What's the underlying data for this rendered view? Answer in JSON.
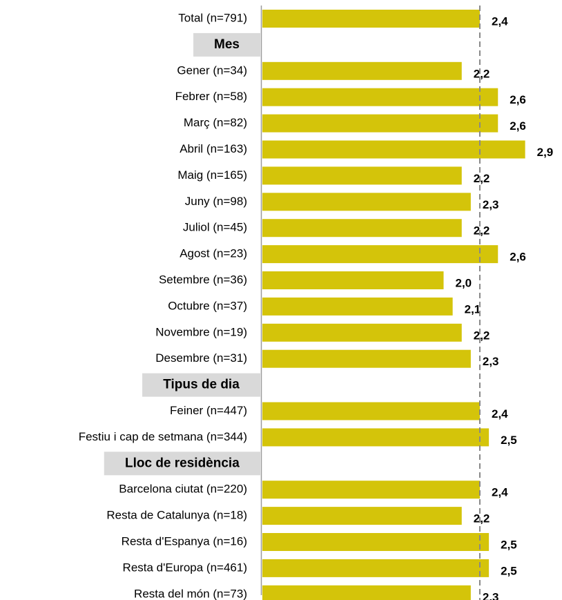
{
  "chart_data": {
    "type": "bar",
    "orientation": "horizontal",
    "categories": [
      "Total (n=791)",
      "Mes",
      "Gener (n=34)",
      "Febrer (n=58)",
      "Març (n=82)",
      "Abril (n=163)",
      "Maig (n=165)",
      "Juny (n=98)",
      "Juliol (n=45)",
      "Agost (n=23)",
      "Setembre (n=36)",
      "Octubre (n=37)",
      "Novembre (n=19)",
      "Desembre (n=31)",
      "Tipus de dia",
      "Feiner (n=447)",
      "Festiu i cap de setmana (n=344)",
      "Lloc de residència",
      "Barcelona ciutat (n=220)",
      "Resta de Catalunya (n=18)",
      "Resta d'Espanya (n=16)",
      "Resta d'Europa (n=461)",
      "Resta del món (n=73)"
    ],
    "values": [
      2.4,
      null,
      2.2,
      2.6,
      2.6,
      2.9,
      2.2,
      2.3,
      2.2,
      2.6,
      2.0,
      2.1,
      2.2,
      2.3,
      null,
      2.4,
      2.5,
      null,
      2.4,
      2.2,
      2.5,
      2.5,
      2.3
    ],
    "value_labels": [
      "2,4",
      null,
      "2,2",
      "2,6",
      "2,6",
      "2,9",
      "2,2",
      "2,3",
      "2,2",
      "2,6",
      "2,0",
      "2,1",
      "2,2",
      "2,3",
      null,
      "2,4",
      "2,5",
      null,
      "2,4",
      "2,2",
      "2,5",
      "2,5",
      "2,3"
    ],
    "color": "#d4c40a",
    "xlim": [
      0,
      3.2
    ],
    "reference_line": 2.4
  }
}
